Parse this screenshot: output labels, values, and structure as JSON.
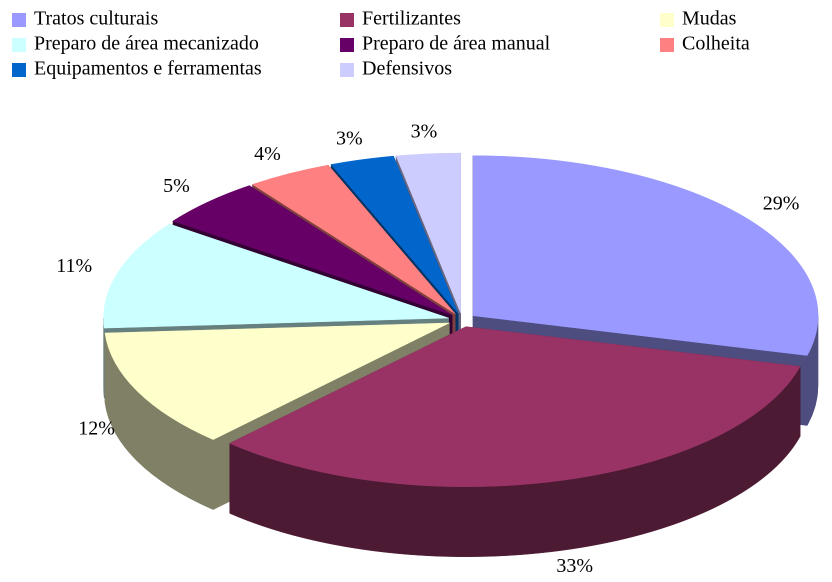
{
  "chart_data": {
    "type": "pie3d",
    "categories": [
      "Tratos culturais",
      "Fertilizantes",
      "Mudas",
      "Preparo de área mecanizado",
      "Preparo de área manual",
      "Colheita",
      "Equipamentos e ferramentas",
      "Defensivos"
    ],
    "values": [
      29,
      33,
      12,
      11,
      5,
      4,
      3,
      3
    ],
    "value_labels": [
      "29%",
      "33%",
      "12%",
      "11%",
      "5%",
      "4%",
      "3%",
      "3%"
    ],
    "colors": [
      "#9999FF",
      "#993366",
      "#FFFFCC",
      "#CCFFFF",
      "#660066",
      "#FF8080",
      "#0066CC",
      "#CCCCFF"
    ]
  }
}
